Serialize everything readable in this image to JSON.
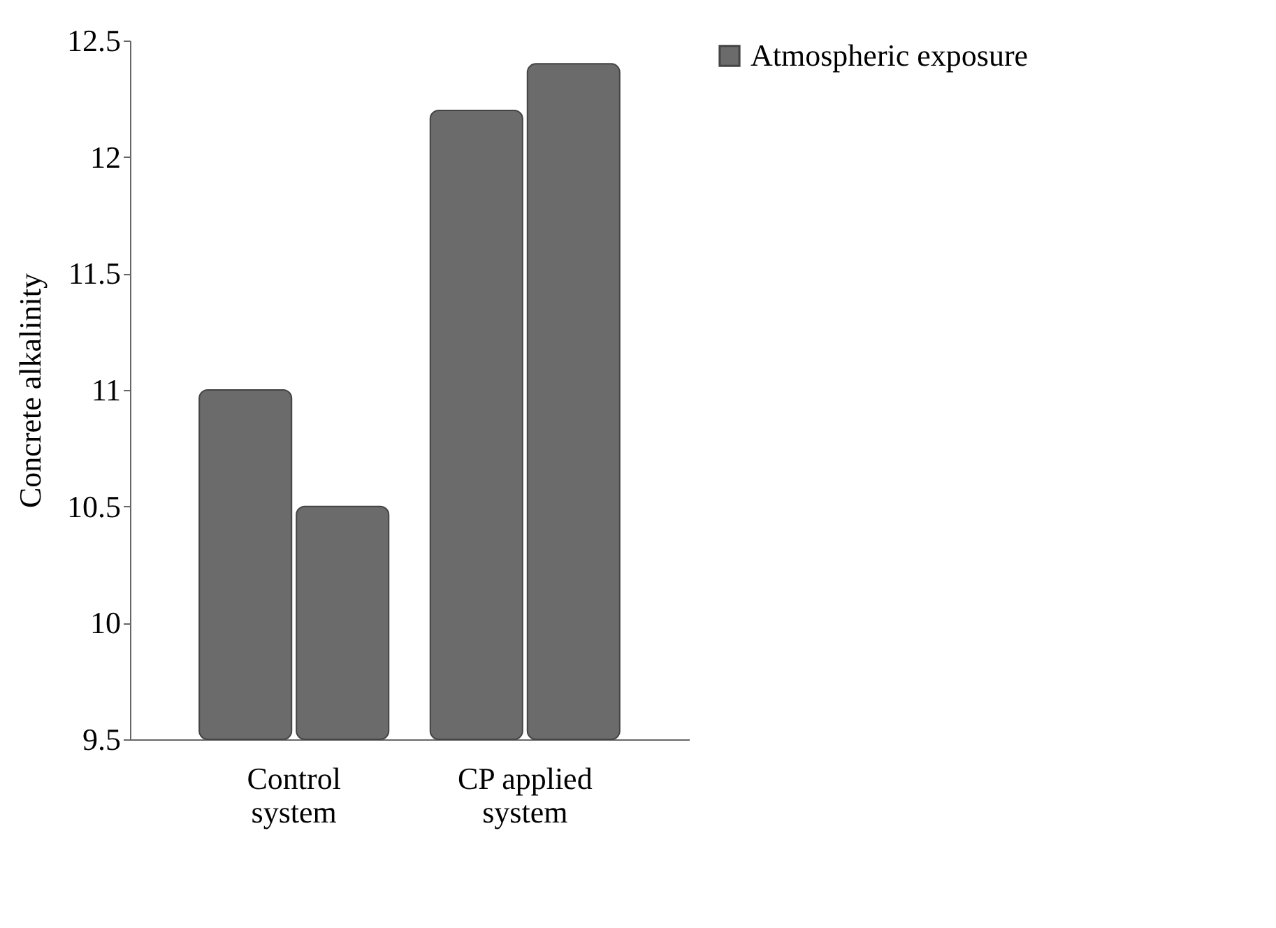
{
  "chart_data": {
    "type": "bar",
    "ylabel": "Concrete alkalinity",
    "categories": [
      "Control system",
      "CP applied system"
    ],
    "series": [
      {
        "name": "Atmospheric exposure",
        "color": "#6b6b6b",
        "values": [
          11.0,
          12.2
        ]
      },
      {
        "color": "#6b6b6b",
        "values": [
          10.5,
          12.4
        ]
      }
    ],
    "ylim": [
      9.5,
      12.5
    ],
    "yticks": [
      9.5,
      10,
      10.5,
      11,
      11.5,
      12,
      12.5
    ],
    "grid": false,
    "legend": "top right"
  }
}
